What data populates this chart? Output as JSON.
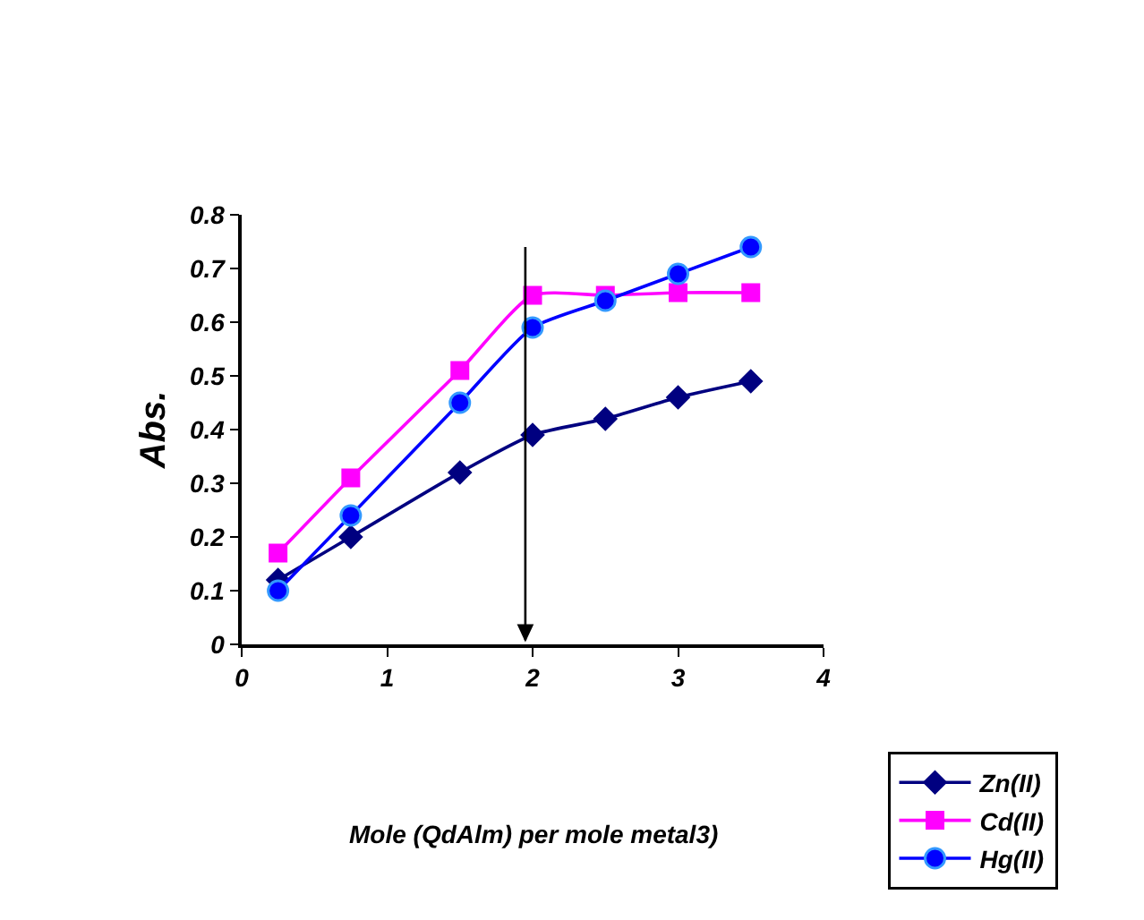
{
  "chart_data": {
    "type": "line",
    "annotations": [
      "Mole (QdAlm) per mole metal3)"
    ],
    "ylabel": "Abs.",
    "x": [
      0.25,
      0.75,
      1.5,
      2,
      2.5,
      3,
      3.5
    ],
    "series": [
      {
        "name": "Zn(II)",
        "color": "#000080",
        "marker": "diamond",
        "values": [
          0.12,
          0.2,
          0.32,
          0.39,
          0.42,
          0.46,
          0.49
        ]
      },
      {
        "name": "Cd(II)",
        "color": "#ff00ff",
        "marker": "square",
        "values": [
          0.17,
          0.31,
          0.51,
          0.65,
          0.65,
          0.655,
          0.655
        ]
      },
      {
        "name": "Hg(II)",
        "color": "#0000ff",
        "marker": "circle",
        "values": [
          0.1,
          0.24,
          0.45,
          0.59,
          0.64,
          0.69,
          0.74
        ]
      }
    ],
    "xlim": [
      0,
      4
    ],
    "xticks": [
      0,
      1,
      2,
      3,
      4
    ],
    "ylim": [
      0,
      0.8
    ],
    "yticks": [
      0,
      0.1,
      0.2,
      0.3,
      0.4,
      0.5,
      0.6,
      0.7,
      0.8
    ],
    "ref_lines": [
      {
        "axis": "x",
        "value": 1.95,
        "color": "#000000"
      }
    ],
    "grid": false,
    "legend": "bottom right",
    "line_style": "solid"
  }
}
